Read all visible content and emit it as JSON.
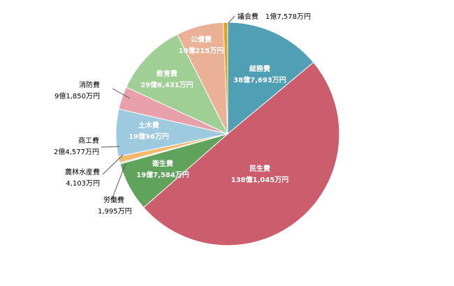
{
  "chart_data": {
    "type": "pie",
    "title": "",
    "slices": [
      {
        "name": "総務費",
        "label": "総務費",
        "value_text": "38億7,693万円",
        "value": 387693,
        "color": "#4f9fb5"
      },
      {
        "name": "民生費",
        "label": "民生費",
        "value_text": "138億1,045万円",
        "value": 1381045,
        "color": "#cb5d6c"
      },
      {
        "name": "衛生費",
        "label": "衛生費",
        "value_text": "19億7,584万円",
        "value": 197584,
        "color": "#5fa35c"
      },
      {
        "name": "労働費",
        "label": "労働費",
        "value_text": "1,995万円",
        "value": 1995,
        "color": "#3c6f9e"
      },
      {
        "name": "農林水産費",
        "label": "農林水産費",
        "value_text": "4,103万円",
        "value": 4103,
        "color": "#9e8f62"
      },
      {
        "name": "商工費",
        "label": "商工費",
        "value_text": "2億4,577万円",
        "value": 24577,
        "color": "#f2b96c"
      },
      {
        "name": "土木費",
        "label": "土木費",
        "value_text": "19億96万円",
        "value": 190096,
        "color": "#9dcade"
      },
      {
        "name": "消防費",
        "label": "消防費",
        "value_text": "9億1,850万円",
        "value": 91850,
        "color": "#e8a1aa"
      },
      {
        "name": "教育費",
        "label": "教育費",
        "value_text": "29億6,431万円",
        "value": 296431,
        "color": "#9fcf94"
      },
      {
        "name": "公債費",
        "label": "公債費",
        "value_text": "19億215万円",
        "value": 190215,
        "color": "#eab197"
      },
      {
        "name": "議会費",
        "label": "議会費",
        "value_text": "1億7,578万円",
        "value": 17578,
        "color": "#e3a21a"
      }
    ]
  }
}
